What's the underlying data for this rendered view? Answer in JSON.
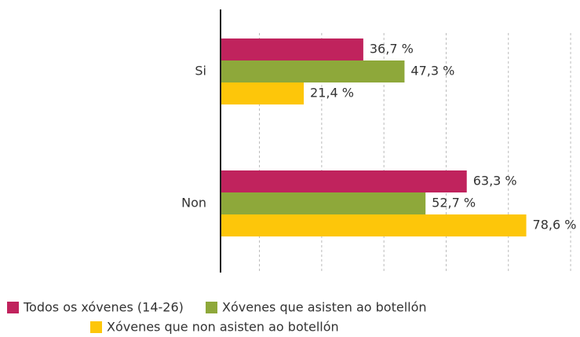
{
  "chart_data": {
    "type": "barh",
    "categories": [
      "Si",
      "Non"
    ],
    "series": [
      {
        "name": "Todos os xóvenes (14-26)",
        "color": "#c0235d",
        "values": [
          36.7,
          63.3
        ],
        "value_labels": [
          "36,7 %",
          "63,3 %"
        ]
      },
      {
        "name": "Xóvenes que asisten ao botellón",
        "color": "#8ea83a",
        "values": [
          47.3,
          52.7
        ],
        "value_labels": [
          "47,3 %",
          "52,7 %"
        ]
      },
      {
        "name": "Xóvenes que non asisten ao botellón",
        "color": "#fdc60a",
        "values": [
          21.4,
          78.6
        ],
        "value_labels": [
          "21,4 %",
          "78,6 %"
        ]
      }
    ],
    "xlim": [
      0,
      91
    ],
    "xticks": [
      10,
      26,
      42,
      58,
      74,
      90
    ],
    "grid": true
  }
}
